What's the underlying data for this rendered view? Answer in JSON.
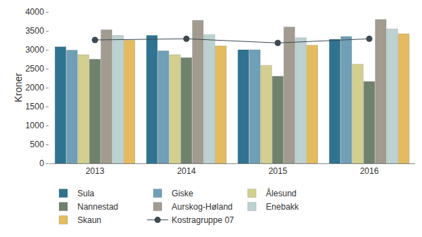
{
  "chart_data": {
    "type": "bar",
    "y_label": "Kroner",
    "categories": [
      "2013",
      "2014",
      "2015",
      "2016"
    ],
    "series": [
      {
        "name": "Sula",
        "color": "#2f7391",
        "values": [
          3080,
          3380,
          3000,
          3280
        ]
      },
      {
        "name": "Giske",
        "color": "#6fa0b8",
        "values": [
          2990,
          2970,
          3000,
          3350
        ]
      },
      {
        "name": "Ålesund",
        "color": "#d3cf8f",
        "values": [
          2870,
          2870,
          2590,
          2620
        ]
      },
      {
        "name": "Nannestad",
        "color": "#6f826c",
        "values": [
          2750,
          2790,
          2300,
          2160
        ]
      },
      {
        "name": "Aurskog-Høland",
        "color": "#a29b90",
        "values": [
          3530,
          3780,
          3600,
          3800
        ]
      },
      {
        "name": "Enebakk",
        "color": "#bcd2d1",
        "values": [
          3380,
          3400,
          3320,
          3550
        ]
      },
      {
        "name": "Skaun",
        "color": "#e4bb5f",
        "values": [
          3250,
          3100,
          3120,
          3420
        ]
      },
      {
        "name": "Kostragruppe 07",
        "color": "#3d4a52",
        "type": "line",
        "marker": "circle",
        "values": [
          3260,
          3290,
          3180,
          3290
        ]
      }
    ],
    "ylim": [
      0,
      4000
    ],
    "yticks": [
      0,
      500,
      1000,
      1500,
      2000,
      2500,
      3000,
      3500,
      4000
    ],
    "grid": false,
    "legend": "bottom"
  }
}
